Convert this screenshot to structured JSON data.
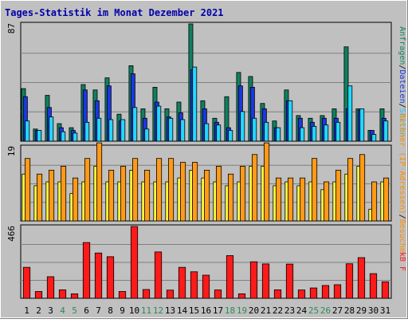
{
  "chart_data": {
    "type": "bar",
    "title": "Tages-Statistik im Monat Dezember 2021",
    "categories": [
      "1",
      "2",
      "3",
      "4",
      "5",
      "6",
      "7",
      "8",
      "9",
      "10",
      "11",
      "12",
      "13",
      "14",
      "15",
      "16",
      "17",
      "18",
      "19",
      "20",
      "21",
      "22",
      "23",
      "24",
      "25",
      "26",
      "27",
      "28",
      "29",
      "30",
      "31"
    ],
    "weekend_days": [
      4,
      5,
      11,
      12,
      18,
      19,
      25,
      26
    ],
    "colors": {
      "title": "#0000aa",
      "background": "#c0c0c0",
      "frame": "#ffffff",
      "border": "#000000",
      "gridline": "#808080",
      "weekday_label": "#000000",
      "weekend_label": "#2e8b57",
      "anfragen": "#0f8060",
      "dateien": "#1a37e0",
      "seiten": "#25d8ff",
      "besuche": "#ffff40",
      "rechner": "#ff9a18",
      "kbf": "#ff1a1a",
      "label_anfragen": "#0f8060",
      "label_dateien": "#1a37e0",
      "label_seiten": "#25c8f0",
      "label_rechner": "#ff8c00",
      "label_kbf": "#ff1a1a"
    },
    "panels": [
      {
        "id": "hits",
        "ymax": 87,
        "label_parts": [
          {
            "text": "Anfragen",
            "color_key": "label_anfragen"
          },
          {
            "text": "/",
            "color_key": "border"
          },
          {
            "text": "Dateien",
            "color_key": "label_dateien"
          },
          {
            "text": "/",
            "color_key": "border"
          },
          {
            "text": "Seiten",
            "color_key": "label_seiten"
          }
        ],
        "series": [
          {
            "name": "Anfragen",
            "color_key": "anfragen",
            "values": [
              39,
              9,
              34,
              13,
              10,
              42,
              38,
              47,
              20,
              56,
              24,
              40,
              24,
              29,
              87,
              30,
              17,
              33,
              51,
              48,
              28,
              15,
              38,
              19,
              17,
              19,
              24,
              70,
              24,
              8,
              24
            ]
          },
          {
            "name": "Dateien",
            "color_key": "dateien",
            "values": [
              33,
              8,
              25,
              10,
              8,
              38,
              30,
              41,
              15,
              50,
              17,
              29,
              18,
              21,
              53,
              24,
              14,
              10,
              41,
              40,
              24,
              10,
              30,
              17,
              14,
              17,
              17,
              24,
              23,
              8,
              17
            ]
          },
          {
            "name": "Seiten",
            "color_key": "seiten",
            "values": [
              15,
              8,
              18,
              7,
              6,
              14,
              17,
              16,
              16,
              25,
              9,
              26,
              17,
              16,
              55,
              13,
              12,
              8,
              22,
              17,
              14,
              10,
              30,
              10,
              11,
              12,
              14,
              41,
              24,
              5,
              15
            ]
          }
        ]
      },
      {
        "id": "visits",
        "ymax": 19,
        "label_parts": [
          {
            "text": "Rechner (IP-Adressen)",
            "color_key": "label_rechner"
          },
          {
            "text": "/",
            "color_key": "border"
          },
          {
            "text": "Besuche",
            "color_key": "label_rechner"
          }
        ],
        "series": [
          {
            "name": "Besuche",
            "color_key": "besuche",
            "values": [
              12,
              9,
              10,
              10,
              7,
              10,
              14,
              10,
              10,
              13,
              10,
              10,
              10,
              11,
              13,
              11,
              10,
              9,
              10,
              14,
              14,
              9,
              10,
              9,
              10,
              8,
              10,
              12,
              14,
              3,
              10
            ]
          },
          {
            "name": "Rechner",
            "color_key": "rechner",
            "values": [
              16,
              12,
              13,
              14,
              11,
              16,
              20,
              13,
              14,
              16,
              13,
              16,
              16,
              15,
              15,
              13,
              14,
              12,
              14,
              17,
              20,
              11,
              11,
              11,
              16,
              10,
              13,
              16,
              17,
              10,
              11
            ]
          }
        ]
      },
      {
        "id": "traffic",
        "ymax": 466,
        "label_parts": [
          {
            "text": "kB F",
            "color_key": "label_kbf"
          }
        ],
        "series": [
          {
            "name": "kB F",
            "color_key": "kbf",
            "values": [
              201,
              44,
              140,
              55,
              29,
              362,
              294,
              270,
              44,
              466,
              57,
              301,
              53,
              201,
              172,
              150,
              54,
              277,
              29,
              237,
              223,
              55,
              222,
              54,
              67,
              83,
              88,
              224,
              264,
              160,
              107
            ]
          }
        ]
      }
    ]
  }
}
